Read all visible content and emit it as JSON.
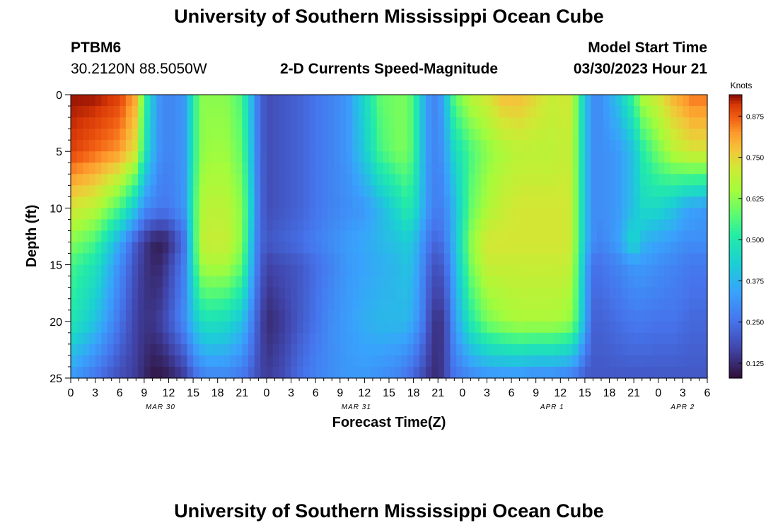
{
  "page": {
    "title": "University of Southern Mississippi Ocean Cube",
    "footer_title": "University of Southern Mississippi Ocean Cube",
    "station_id": "PTBM6",
    "station_coords": "30.2120N  88.5050W",
    "plot_subtitle": "2-D Currents Speed-Magnitude",
    "model_label": "Model Start Time",
    "model_time": "03/30/2023 Hour 21"
  },
  "chart_data": {
    "type": "heatmap",
    "title": "2-D Currents Speed-Magnitude",
    "xlabel": "Forecast Time(Z)",
    "ylabel": "Depth (ft)",
    "colorbar_label": "Knots",
    "colorbar_ticks": [
      "0.125",
      "0.250",
      "0.375",
      "0.500",
      "0.625",
      "0.750",
      "0.875"
    ],
    "colorbar_range": [
      0.08,
      0.94
    ],
    "xlim": [
      0,
      78
    ],
    "ylim": [
      0,
      25
    ],
    "x_tick_labels": [
      "0",
      "3",
      "6",
      "9",
      "12",
      "15",
      "18",
      "21",
      "0",
      "3",
      "6",
      "9",
      "12",
      "15",
      "18",
      "21",
      "0",
      "3",
      "6",
      "9",
      "12",
      "15",
      "18",
      "21",
      "0",
      "3",
      "6"
    ],
    "y_tick_labels": [
      "0",
      "5",
      "10",
      "15",
      "20",
      "25"
    ],
    "date_labels": [
      {
        "label": "MAR 30",
        "hour": 11
      },
      {
        "label": "MAR 31",
        "hour": 35
      },
      {
        "label": "APR 1",
        "hour": 59
      },
      {
        "label": "APR 2",
        "hour": 75
      }
    ],
    "depth_levels": [
      0,
      5,
      10,
      13,
      15,
      20,
      25
    ],
    "time_hours": [
      0,
      3,
      6,
      8,
      9,
      10,
      11,
      12,
      14,
      15,
      16,
      17,
      19,
      21,
      22,
      23,
      24,
      26,
      28,
      30,
      32,
      34,
      36,
      38,
      40,
      41,
      42,
      43,
      44,
      45,
      46,
      47,
      49,
      51,
      53,
      55,
      57,
      59,
      61,
      62,
      63,
      64,
      65,
      67,
      69,
      70,
      72,
      74,
      75,
      76,
      78
    ],
    "speed_knots": [
      [
        0.93,
        0.93,
        0.9,
        0.8,
        0.55,
        0.4,
        0.3,
        0.28,
        0.32,
        0.5,
        0.62,
        0.62,
        0.62,
        0.55,
        0.4,
        0.25,
        0.18,
        0.2,
        0.22,
        0.25,
        0.28,
        0.32,
        0.45,
        0.58,
        0.6,
        0.6,
        0.55,
        0.4,
        0.3,
        0.28,
        0.4,
        0.58,
        0.68,
        0.72,
        0.78,
        0.78,
        0.74,
        0.7,
        0.72,
        0.6,
        0.4,
        0.3,
        0.3,
        0.4,
        0.55,
        0.66,
        0.72,
        0.8,
        0.82,
        0.85,
        0.85
      ],
      [
        0.9,
        0.86,
        0.82,
        0.72,
        0.5,
        0.38,
        0.3,
        0.28,
        0.32,
        0.5,
        0.62,
        0.64,
        0.64,
        0.58,
        0.42,
        0.25,
        0.18,
        0.2,
        0.22,
        0.25,
        0.28,
        0.32,
        0.42,
        0.55,
        0.6,
        0.6,
        0.55,
        0.4,
        0.3,
        0.28,
        0.35,
        0.45,
        0.55,
        0.62,
        0.66,
        0.68,
        0.68,
        0.68,
        0.7,
        0.6,
        0.4,
        0.3,
        0.3,
        0.32,
        0.4,
        0.5,
        0.6,
        0.68,
        0.7,
        0.72,
        0.72
      ],
      [
        0.72,
        0.68,
        0.55,
        0.4,
        0.3,
        0.28,
        0.26,
        0.26,
        0.32,
        0.52,
        0.66,
        0.68,
        0.68,
        0.62,
        0.45,
        0.26,
        0.18,
        0.2,
        0.22,
        0.25,
        0.28,
        0.3,
        0.32,
        0.38,
        0.45,
        0.5,
        0.48,
        0.38,
        0.3,
        0.26,
        0.3,
        0.38,
        0.58,
        0.66,
        0.7,
        0.72,
        0.72,
        0.72,
        0.72,
        0.6,
        0.4,
        0.3,
        0.3,
        0.32,
        0.4,
        0.45,
        0.45,
        0.4,
        0.36,
        0.34,
        0.32
      ],
      [
        0.62,
        0.55,
        0.35,
        0.2,
        0.15,
        0.11,
        0.1,
        0.12,
        0.25,
        0.5,
        0.68,
        0.7,
        0.7,
        0.62,
        0.42,
        0.25,
        0.2,
        0.22,
        0.24,
        0.27,
        0.3,
        0.33,
        0.35,
        0.38,
        0.4,
        0.42,
        0.4,
        0.32,
        0.25,
        0.22,
        0.28,
        0.38,
        0.62,
        0.72,
        0.72,
        0.72,
        0.72,
        0.72,
        0.72,
        0.6,
        0.4,
        0.3,
        0.28,
        0.33,
        0.46,
        0.38,
        0.34,
        0.32,
        0.3,
        0.3,
        0.3
      ],
      [
        0.55,
        0.48,
        0.3,
        0.18,
        0.14,
        0.12,
        0.12,
        0.16,
        0.28,
        0.48,
        0.64,
        0.66,
        0.66,
        0.58,
        0.4,
        0.24,
        0.16,
        0.18,
        0.2,
        0.24,
        0.28,
        0.32,
        0.34,
        0.36,
        0.38,
        0.4,
        0.38,
        0.3,
        0.22,
        0.18,
        0.24,
        0.36,
        0.6,
        0.7,
        0.7,
        0.7,
        0.7,
        0.7,
        0.7,
        0.58,
        0.36,
        0.25,
        0.25,
        0.28,
        0.32,
        0.32,
        0.3,
        0.28,
        0.27,
        0.26,
        0.26
      ],
      [
        0.5,
        0.4,
        0.25,
        0.16,
        0.14,
        0.14,
        0.16,
        0.2,
        0.3,
        0.4,
        0.46,
        0.48,
        0.46,
        0.4,
        0.3,
        0.2,
        0.12,
        0.15,
        0.2,
        0.25,
        0.3,
        0.33,
        0.36,
        0.38,
        0.38,
        0.38,
        0.35,
        0.28,
        0.18,
        0.12,
        0.18,
        0.32,
        0.5,
        0.6,
        0.64,
        0.66,
        0.66,
        0.66,
        0.64,
        0.55,
        0.35,
        0.22,
        0.22,
        0.24,
        0.26,
        0.26,
        0.25,
        0.25,
        0.24,
        0.23,
        0.23
      ],
      [
        0.32,
        0.25,
        0.18,
        0.15,
        0.12,
        0.09,
        0.09,
        0.1,
        0.15,
        0.22,
        0.26,
        0.28,
        0.28,
        0.25,
        0.22,
        0.18,
        0.15,
        0.18,
        0.24,
        0.28,
        0.3,
        0.32,
        0.32,
        0.3,
        0.28,
        0.25,
        0.22,
        0.18,
        0.14,
        0.12,
        0.18,
        0.25,
        0.28,
        0.3,
        0.3,
        0.3,
        0.28,
        0.28,
        0.26,
        0.24,
        0.2,
        0.2,
        0.2,
        0.2,
        0.2,
        0.2,
        0.2,
        0.2,
        0.2,
        0.2,
        0.2
      ]
    ]
  }
}
